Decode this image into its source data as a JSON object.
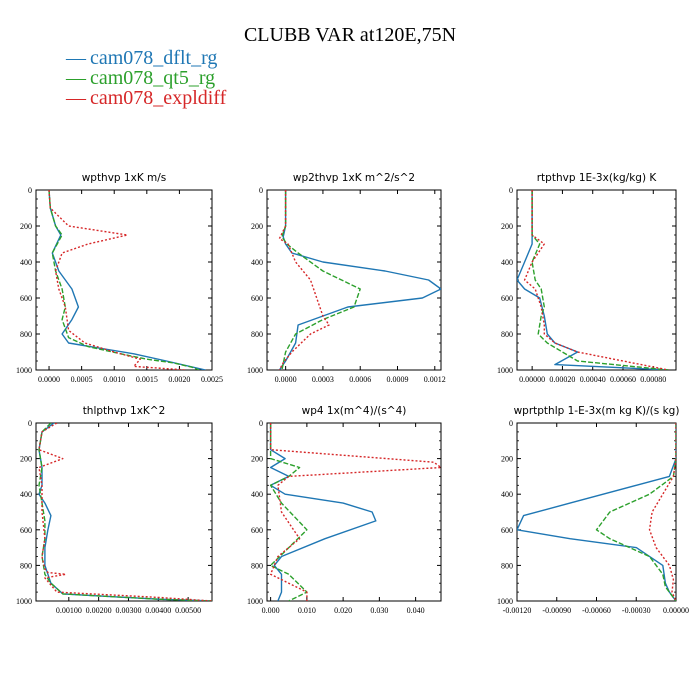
{
  "figure": {
    "title": "CLUBB VAR at120E,75N",
    "legend": [
      {
        "label": "cam078_dflt_rg",
        "color": "#1f77b4"
      },
      {
        "label": "cam078_qt5_rg",
        "color": "#2ca02c"
      },
      {
        "label": "cam078_expldiff",
        "color": "#d62728"
      }
    ],
    "legend_marker": "—"
  },
  "chart_data": [
    {
      "type": "line",
      "title": "wpthvp  1xK m/s",
      "xlim": [
        -0.0002,
        0.0025
      ],
      "ylim": [
        1000,
        0
      ],
      "xticks": [
        0.0,
        0.0005,
        0.001,
        0.0015,
        0.002,
        0.0025
      ],
      "xtick_labels": [
        "0.0000",
        "0.0005",
        "0.0010",
        "0.0015",
        "0.0020",
        "0.0025"
      ],
      "yticks": [
        0,
        200,
        400,
        600,
        800,
        1000
      ],
      "series": [
        {
          "name": "cam078_dflt_rg",
          "x": [
            0.0,
            2e-05,
            0.0001,
            0.00018,
            5e-05,
            0.00015,
            0.00035,
            0.00045,
            0.00035,
            0.0002,
            0.0003,
            0.0008,
            0.0013,
            0.0018,
            0.0024
          ],
          "y": [
            0,
            100,
            200,
            250,
            350,
            450,
            550,
            650,
            720,
            800,
            850,
            880,
            910,
            950,
            1000
          ]
        },
        {
          "name": "cam078_qt5_rg",
          "x": [
            0.0,
            2e-05,
            0.0001,
            0.0002,
            5e-05,
            0.0001,
            0.0002,
            0.00025,
            0.0002,
            0.0003,
            0.0006,
            0.0011,
            0.0015,
            0.0019,
            0.0022,
            0.0023
          ],
          "y": [
            0,
            100,
            200,
            250,
            350,
            450,
            550,
            650,
            720,
            820,
            870,
            910,
            940,
            960,
            985,
            1000
          ]
        },
        {
          "name": "cam078_expldiff",
          "x": [
            0.0,
            2e-05,
            0.0003,
            0.0012,
            0.0006,
            0.0002,
            0.0001,
            0.00015,
            0.00025,
            0.0003,
            0.00055,
            0.001,
            0.0014,
            0.0013,
            0.0021
          ],
          "y": [
            0,
            100,
            200,
            250,
            300,
            350,
            450,
            550,
            650,
            780,
            850,
            900,
            940,
            980,
            1000
          ]
        }
      ]
    },
    {
      "type": "line",
      "title": "wp2thvp  1xK m^2/s^2",
      "xlim": [
        -0.00015,
        0.00125
      ],
      "ylim": [
        1000,
        0
      ],
      "xticks": [
        0.0,
        0.0003,
        0.0006,
        0.0009,
        0.0012
      ],
      "xtick_labels": [
        "0.0000",
        "0.0003",
        "0.0006",
        "0.0009",
        "0.0012"
      ],
      "yticks": [
        0,
        200,
        400,
        600,
        800,
        1000
      ],
      "series": [
        {
          "name": "cam078_dflt_rg",
          "x": [
            0.0,
            0.0,
            -2e-05,
            0.0,
            5e-05,
            0.0003,
            0.0008,
            0.00115,
            0.00125,
            0.0011,
            0.0005,
            0.0001,
            8e-05,
            0.0,
            -5e-05
          ],
          "y": [
            0,
            200,
            260,
            300,
            350,
            400,
            450,
            500,
            550,
            600,
            650,
            750,
            850,
            950,
            1000
          ]
        },
        {
          "name": "cam078_qt5_rg",
          "x": [
            0.0,
            0.0,
            -3e-05,
            1e-05,
            0.0001,
            0.0003,
            0.0006,
            0.00055,
            0.0003,
            8e-05,
            0.0,
            -3e-05
          ],
          "y": [
            0,
            200,
            260,
            300,
            350,
            450,
            550,
            650,
            720,
            800,
            900,
            1000
          ]
        },
        {
          "name": "cam078_expldiff",
          "x": [
            0.0,
            0.0,
            -5e-05,
            2e-05,
            8e-05,
            0.0002,
            0.00025,
            0.0003,
            0.00035,
            0.0002,
            5e-05,
            -2e-05,
            -5e-05
          ],
          "y": [
            0,
            200,
            270,
            300,
            400,
            500,
            600,
            700,
            750,
            800,
            900,
            960,
            1000
          ]
        }
      ]
    },
    {
      "type": "line",
      "title": "rtpthvp  1E-3x(kg/kg) K",
      "xlim": [
        -0.0001,
        0.00095
      ],
      "ylim": [
        1000,
        0
      ],
      "xticks": [
        0.0,
        0.0002,
        0.0004,
        0.0006,
        0.0008
      ],
      "xtick_labels": [
        "0.00000",
        "0.00020",
        "0.00040",
        "0.00060",
        "0.00080"
      ],
      "yticks": [
        0,
        200,
        400,
        600,
        800,
        1000
      ],
      "series": [
        {
          "name": "cam078_dflt_rg",
          "x": [
            0.0,
            0.0,
            0.0,
            -5e-05,
            -0.0001,
            -5e-05,
            5e-05,
            8e-05,
            0.0001,
            0.00015,
            0.0003,
            0.00015,
            0.0009
          ],
          "y": [
            0,
            200,
            300,
            400,
            500,
            550,
            600,
            700,
            800,
            850,
            900,
            970,
            1000
          ]
        },
        {
          "name": "cam078_qt5_rg",
          "x": [
            0.0,
            0.0,
            0.0,
            5e-05,
            0.0,
            2e-05,
            6e-05,
            8e-05,
            6e-05,
            4e-05,
            0.0001,
            0.0002,
            0.0003,
            0.0009
          ],
          "y": [
            0,
            200,
            250,
            300,
            400,
            500,
            550,
            650,
            700,
            800,
            850,
            900,
            950,
            1000
          ]
        },
        {
          "name": "cam078_expldiff",
          "x": [
            0.0,
            0.0,
            0.0,
            8e-05,
            0.0,
            -5e-05,
            2e-05,
            6e-05,
            8e-05,
            8e-05,
            0.00015,
            0.0003,
            0.0009
          ],
          "y": [
            0,
            200,
            250,
            300,
            400,
            500,
            550,
            650,
            750,
            800,
            850,
            900,
            1000
          ]
        }
      ]
    },
    {
      "type": "line",
      "title": "thlpthvp  1xK^2",
      "xlim": [
        -0.0001,
        0.0058
      ],
      "ylim": [
        1000,
        0
      ],
      "xticks": [
        0.001,
        0.002,
        0.003,
        0.004,
        0.005
      ],
      "xtick_labels": [
        "0.00100",
        "0.00200",
        "0.00300",
        "0.00400",
        "0.00500"
      ],
      "yticks": [
        0,
        200,
        400,
        600,
        800,
        1000
      ],
      "series": [
        {
          "name": "cam078_dflt_rg",
          "x": [
            0.0005,
            0.0001,
            0.0,
            0.0001,
            0.0001,
            0.0,
            0.0002,
            0.0004,
            0.0003,
            0.0002,
            0.0002,
            0.0003,
            0.0004,
            0.0008,
            0.004,
            0.0058
          ],
          "y": [
            0,
            50,
            150,
            250,
            350,
            400,
            450,
            520,
            600,
            700,
            800,
            850,
            900,
            960,
            990,
            1000
          ]
        },
        {
          "name": "cam078_qt5_rg",
          "x": [
            0.0004,
            0.0001,
            0.0,
            0.0001,
            0.0,
            0.0001,
            0.0002,
            0.0002,
            0.0001,
            0.0002,
            0.0004,
            0.0008,
            0.004,
            0.0058
          ],
          "y": [
            0,
            50,
            150,
            250,
            350,
            450,
            550,
            650,
            750,
            850,
            900,
            960,
            990,
            1000
          ]
        },
        {
          "name": "cam078_expldiff",
          "x": [
            0.0006,
            0.0001,
            0.0,
            0.0008,
            0.0,
            0.0001,
            0.0001,
            0.0002,
            0.0001,
            0.0002,
            0.0003,
            0.0009,
            0.0002,
            0.0006,
            0.004,
            0.0058
          ],
          "y": [
            0,
            50,
            150,
            200,
            250,
            350,
            500,
            650,
            750,
            820,
            840,
            850,
            870,
            950,
            980,
            1000
          ]
        }
      ]
    },
    {
      "type": "line",
      "title": "wp4  1x(m^4)/(s^4)",
      "xlim": [
        -0.001,
        0.047
      ],
      "ylim": [
        1000,
        0
      ],
      "xticks": [
        0.0,
        0.01,
        0.02,
        0.03,
        0.04
      ],
      "xtick_labels": [
        "0.000",
        "0.010",
        "0.020",
        "0.030",
        "0.040"
      ],
      "yticks": [
        0,
        200,
        400,
        600,
        800,
        1000
      ],
      "series": [
        {
          "name": "cam078_dflt_rg",
          "x": [
            0.0,
            0.0,
            0.004,
            0.0,
            0.005,
            0.0,
            0.004,
            0.02,
            0.028,
            0.029,
            0.015,
            0.003,
            0.001,
            0.003,
            0.003,
            0.002
          ],
          "y": [
            0,
            150,
            200,
            250,
            300,
            350,
            400,
            450,
            500,
            550,
            650,
            750,
            800,
            850,
            950,
            1000
          ]
        },
        {
          "name": "cam078_qt5_rg",
          "x": [
            0.0,
            0.0,
            0.008,
            0.005,
            0.0,
            0.003,
            0.01,
            0.005,
            0.0,
            0.005,
            0.01,
            0.005
          ],
          "y": [
            0,
            200,
            250,
            300,
            350,
            450,
            600,
            700,
            800,
            850,
            950,
            1000
          ]
        },
        {
          "name": "cam078_expldiff",
          "x": [
            0.0,
            0.0,
            0.045,
            0.047,
            0.005,
            0.002,
            0.003,
            0.008,
            0.002,
            0.0,
            0.01,
            0.01
          ],
          "y": [
            0,
            150,
            220,
            250,
            300,
            350,
            500,
            650,
            750,
            850,
            950,
            1000
          ]
        }
      ]
    },
    {
      "type": "line",
      "title": "wprtpthlp  1-E-3x(m kg K)/(s kg)",
      "xlim": [
        -0.0012,
        0.0
      ],
      "ylim": [
        1000,
        0
      ],
      "xticks": [
        -0.0012,
        -0.0009,
        -0.0006,
        -0.0003,
        0.0
      ],
      "xtick_labels": [
        "-0.00120",
        "-0.00090",
        "-0.00060",
        "-0.00030",
        "0.00000"
      ],
      "yticks": [
        0,
        200,
        400,
        600,
        800,
        1000
      ],
      "series": [
        {
          "name": "cam078_dflt_rg",
          "x": [
            0.0,
            0.0,
            -5e-05,
            -0.0003,
            -0.0008,
            -0.00115,
            -0.0012,
            -0.0008,
            -0.0003,
            -0.0001,
            -8e-05,
            -5e-05,
            0.0
          ],
          "y": [
            0,
            200,
            300,
            350,
            450,
            520,
            600,
            650,
            700,
            800,
            900,
            950,
            1000
          ]
        },
        {
          "name": "cam078_qt5_rg",
          "x": [
            0.0,
            0.0,
            -2e-05,
            -0.0002,
            -0.0005,
            -0.0006,
            -0.0005,
            -0.0002,
            -0.0001,
            -8e-05,
            0.0
          ],
          "y": [
            0,
            200,
            300,
            400,
            500,
            600,
            650,
            750,
            850,
            920,
            1000
          ]
        },
        {
          "name": "cam078_expldiff",
          "x": [
            0.0,
            0.0,
            -2e-05,
            -0.0001,
            -0.00018,
            -0.0002,
            -0.00015,
            -5e-05,
            -2e-05,
            -3e-05,
            0.0
          ],
          "y": [
            0,
            200,
            300,
            400,
            500,
            600,
            700,
            800,
            880,
            950,
            1000
          ]
        }
      ]
    }
  ]
}
